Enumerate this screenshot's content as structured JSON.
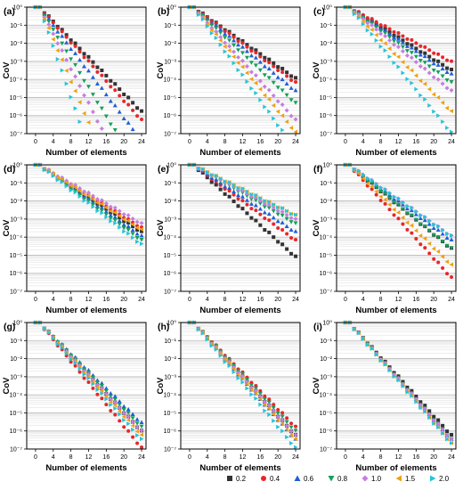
{
  "figure": {
    "legend": {
      "entries": [
        {
          "label": "0.2",
          "color": "#333333",
          "marker": "square"
        },
        {
          "label": "0.4",
          "color": "#e8262a",
          "marker": "circle"
        },
        {
          "label": "0.6",
          "color": "#1f5fd6",
          "marker": "triangle-up"
        },
        {
          "label": "0.8",
          "color": "#14a05a",
          "marker": "triangle-down"
        },
        {
          "label": "1.0",
          "color": "#c67ee0",
          "marker": "diamond"
        },
        {
          "label": "1.5",
          "color": "#f0a010",
          "marker": "triangle-left"
        },
        {
          "label": "2.0",
          "color": "#25c4d8",
          "marker": "triangle-right"
        }
      ]
    }
  },
  "chart_data": [
    {
      "panel_label": "(a)",
      "type": "scatter",
      "xlabel": "Number of elements",
      "ylabel": "CoV",
      "yscale": "log",
      "xlim": [
        -2,
        25
      ],
      "ylim": [
        1e-07,
        1
      ],
      "x_ticks": [
        0,
        4,
        8,
        12,
        16,
        20,
        24
      ],
      "y_ticks": [
        "10^0",
        "10^-1",
        "10^-2",
        "10^-3",
        "10^-4",
        "10^-5",
        "10^-6",
        "10^-7"
      ],
      "grid": "horizontal",
      "series_slopes": {
        "0.2": -0.25,
        "0.4": -0.27,
        "0.6": -0.32,
        "0.8": -0.4,
        "1.0": -0.48,
        "1.5": -0.58,
        "2.0": -0.7
      }
    },
    {
      "panel_label": "(b)",
      "type": "scatter",
      "xlabel": "Number of elements",
      "ylabel": "CoV",
      "yscale": "log",
      "xlim": [
        -2,
        25
      ],
      "ylim": [
        1e-07,
        1
      ],
      "x_ticks": [
        0,
        4,
        8,
        12,
        16,
        20,
        24
      ],
      "y_ticks": [
        "10^0",
        "10^-1",
        "10^-2",
        "10^-3",
        "10^-4",
        "10^-5",
        "10^-6",
        "10^-7"
      ],
      "grid": "horizontal",
      "series_slopes": {
        "0.2": -0.17,
        "0.4": -0.18,
        "0.6": -0.2,
        "0.8": -0.23,
        "1.0": -0.27,
        "1.5": -0.3,
        "2.0": -0.34
      }
    },
    {
      "panel_label": "(c)",
      "type": "scatter",
      "xlabel": "Number of elements",
      "ylabel": "CoV",
      "yscale": "log",
      "xlim": [
        -2,
        25
      ],
      "ylim": [
        1e-07,
        1
      ],
      "x_ticks": [
        0,
        4,
        8,
        12,
        16,
        20,
        24
      ],
      "y_ticks": [
        "10^0",
        "10^-1",
        "10^-2",
        "10^-3",
        "10^-4",
        "10^-5",
        "10^-6",
        "10^-7"
      ],
      "grid": "horizontal",
      "series_slopes": {
        "0.2": -0.15,
        "0.4": -0.13,
        "0.6": -0.16,
        "0.8": -0.18,
        "1.0": -0.2,
        "1.5": -0.25,
        "2.0": -0.3
      }
    },
    {
      "panel_label": "(d)",
      "type": "scatter",
      "xlabel": "Number of elements",
      "ylabel": "CoV",
      "yscale": "log",
      "xlim": [
        -2,
        25
      ],
      "ylim": [
        1e-07,
        1
      ],
      "x_ticks": [
        0,
        4,
        8,
        12,
        16,
        20,
        24
      ],
      "y_ticks": [
        "10^0",
        "10^-1",
        "10^-2",
        "10^-3",
        "10^-4",
        "10^-5",
        "10^-6",
        "10^-7"
      ],
      "grid": "horizontal",
      "series_slopes": {
        "0.2": -0.16,
        "0.4": -0.15,
        "0.6": -0.17,
        "0.8": -0.18,
        "1.0": -0.14,
        "1.5": -0.155,
        "2.0": -0.19
      }
    },
    {
      "panel_label": "(e)",
      "type": "scatter",
      "xlabel": "Number of elements",
      "ylabel": "CoV",
      "yscale": "log",
      "xlim": [
        -2,
        25
      ],
      "ylim": [
        1e-07,
        1
      ],
      "x_ticks": [
        0,
        4,
        8,
        12,
        16,
        20,
        24
      ],
      "y_ticks": [
        "10^0",
        "10^-1",
        "10^-2",
        "10^-3",
        "10^-4",
        "10^-5",
        "10^-6",
        "10^-7"
      ],
      "grid": "horizontal",
      "series_slopes": {
        "0.2": -0.22,
        "0.4": -0.18,
        "0.6": -0.16,
        "0.8": -0.14,
        "1.0": -0.13,
        "1.5": -0.12,
        "2.0": -0.12
      }
    },
    {
      "panel_label": "(f)",
      "type": "scatter",
      "xlabel": "Number of elements",
      "ylabel": "CoV",
      "yscale": "log",
      "xlim": [
        -2,
        25
      ],
      "ylim": [
        1e-07,
        1
      ],
      "x_ticks": [
        0,
        4,
        8,
        12,
        16,
        20,
        24
      ],
      "y_ticks": [
        "10^0",
        "10^-1",
        "10^-2",
        "10^-3",
        "10^-4",
        "10^-5",
        "10^-6",
        "10^-7"
      ],
      "grid": "horizontal",
      "series_slopes": {
        "0.2": -0.2,
        "0.4": -0.27,
        "0.6": -0.18,
        "0.8": -0.2,
        "1.0": -0.17,
        "1.5": -0.24,
        "2.0": -0.17
      }
    },
    {
      "panel_label": "(g)",
      "type": "scatter",
      "xlabel": "Number of elements",
      "ylabel": "CoV",
      "yscale": "log",
      "xlim": [
        -2,
        25
      ],
      "ylim": [
        1e-07,
        1
      ],
      "x_ticks": [
        0,
        4,
        8,
        12,
        16,
        20,
        24
      ],
      "y_ticks": [
        "10^0",
        "10^-1",
        "10^-2",
        "10^-3",
        "10^-4",
        "10^-5",
        "10^-6",
        "10^-7"
      ],
      "grid": "horizontal",
      "series_slopes": {
        "0.2": -0.26,
        "0.4": -0.3,
        "0.6": -0.24,
        "0.8": -0.25,
        "1.0": -0.26,
        "1.5": -0.27,
        "2.0": -0.28
      }
    },
    {
      "panel_label": "(h)",
      "type": "scatter",
      "xlabel": "Number of elements",
      "ylabel": "CoV",
      "yscale": "log",
      "xlim": [
        -2,
        25
      ],
      "ylim": [
        1e-07,
        1
      ],
      "x_ticks": [
        0,
        4,
        8,
        12,
        16,
        20,
        24
      ],
      "y_ticks": [
        "10^0",
        "10^-1",
        "10^-2",
        "10^-3",
        "10^-4",
        "10^-5",
        "10^-6",
        "10^-7"
      ],
      "grid": "horizontal",
      "series_slopes": {
        "0.2": -0.27,
        "0.4": -0.25,
        "0.6": -0.28,
        "0.8": -0.26,
        "1.0": -0.27,
        "1.5": -0.28,
        "2.0": -0.3
      }
    },
    {
      "panel_label": "(i)",
      "type": "scatter",
      "xlabel": "Number of elements",
      "ylabel": "CoV",
      "yscale": "log",
      "xlim": [
        -2,
        25
      ],
      "ylim": [
        1e-07,
        1
      ],
      "x_ticks": [
        0,
        4,
        8,
        12,
        16,
        20,
        24
      ],
      "y_ticks": [
        "10^0",
        "10^-1",
        "10^-2",
        "10^-3",
        "10^-4",
        "10^-5",
        "10^-6",
        "10^-7"
      ],
      "grid": "horizontal",
      "series_slopes": {
        "0.2": -0.27,
        "0.4": -0.28,
        "0.6": -0.28,
        "0.8": -0.28,
        "1.0": -0.28,
        "1.5": -0.29,
        "2.0": -0.29
      }
    }
  ]
}
